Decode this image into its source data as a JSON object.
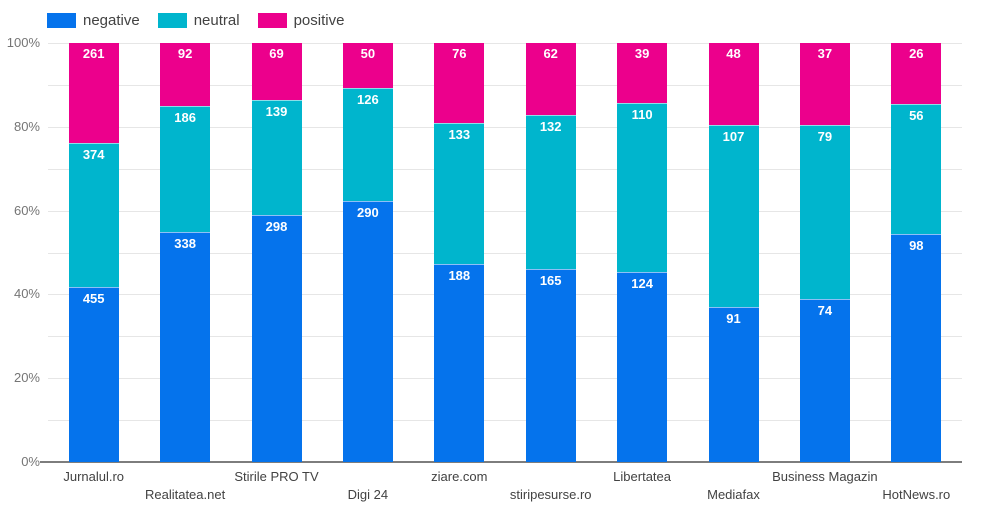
{
  "chart_data": {
    "type": "bar",
    "variant": "stacked-100-percent-column",
    "title": "",
    "xlabel": "",
    "ylabel": "",
    "ylim": [
      0,
      100
    ],
    "y_tick_labels": [
      "0%",
      "20%",
      "40%",
      "60%",
      "80%",
      "100%"
    ],
    "y_tick_values": [
      0,
      20,
      40,
      60,
      80,
      100
    ],
    "y_minor_grid_step": 10,
    "grid": true,
    "legend_position": "top-left",
    "categories": [
      "Jurnalul.ro",
      "Realitatea.net",
      "Stirile PRO TV",
      "Digi 24",
      "ziare.com",
      "stiripesurse.ro",
      "Libertatea",
      "Mediafax",
      "Business Magazin",
      "HotNews.ro"
    ],
    "series": [
      {
        "name": "negative",
        "color": "#0573ec",
        "values": [
          455,
          338,
          298,
          290,
          188,
          165,
          124,
          91,
          74,
          98
        ]
      },
      {
        "name": "neutral",
        "color": "#00b5cd",
        "values": [
          374,
          186,
          139,
          126,
          133,
          132,
          110,
          107,
          79,
          56
        ]
      },
      {
        "name": "positive",
        "color": "#ec008c",
        "values": [
          261,
          92,
          69,
          50,
          76,
          62,
          39,
          48,
          37,
          26
        ]
      }
    ],
    "colors": {
      "negative": "#0573ec",
      "neutral": "#00b5cd",
      "positive": "#ec008c",
      "grid": "#e6e6e6",
      "baseline": "#7d7d7d",
      "axis_text": "#757575",
      "category_text": "#424242",
      "annotation_text": "#ffffff"
    }
  }
}
